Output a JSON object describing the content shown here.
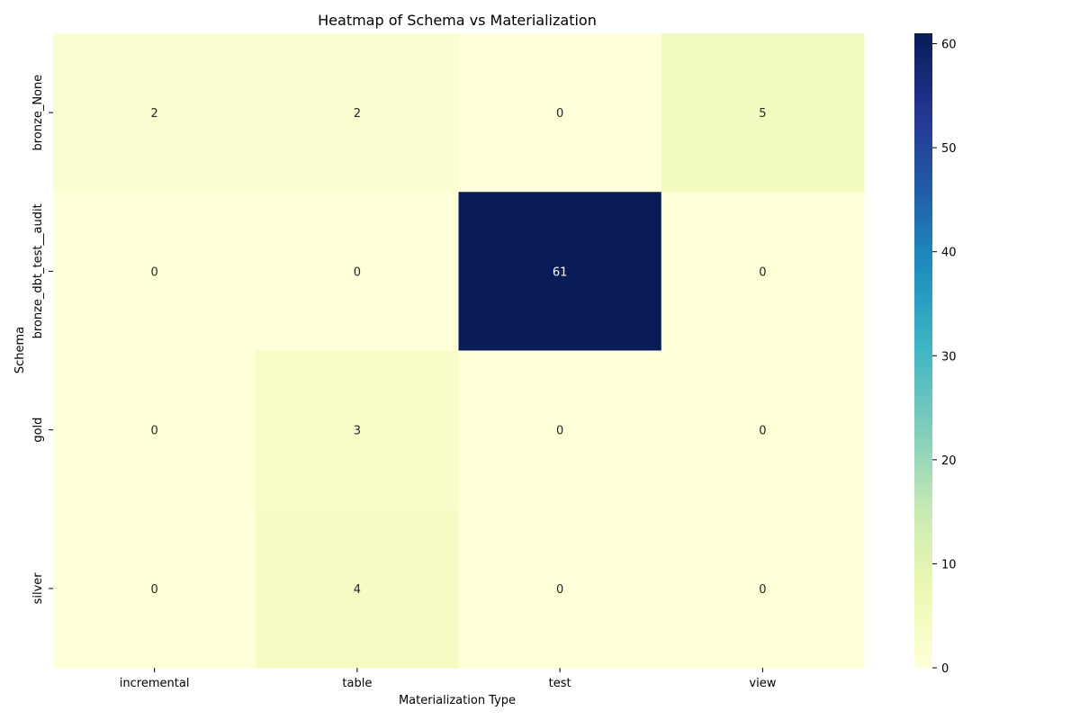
{
  "chart_data": {
    "type": "heatmap",
    "title": "Heatmap of Schema vs Materialization",
    "xlabel": "Materialization Type",
    "ylabel": "Schema",
    "columns": [
      "incremental",
      "table",
      "test",
      "view"
    ],
    "rows": [
      "bronze_None",
      "bronze_dbt_test__audit",
      "gold",
      "silver"
    ],
    "values": [
      [
        2,
        2,
        0,
        5
      ],
      [
        0,
        0,
        61,
        0
      ],
      [
        0,
        3,
        0,
        0
      ],
      [
        0,
        4,
        0,
        0
      ]
    ],
    "vmin": 0,
    "vmax": 61,
    "colormap": "YlGnBu",
    "colorbar_ticks": [
      0,
      10,
      20,
      30,
      40,
      50,
      60
    ],
    "annotation_dark_color": "#262626",
    "annotation_light_color": "#ffffff"
  }
}
